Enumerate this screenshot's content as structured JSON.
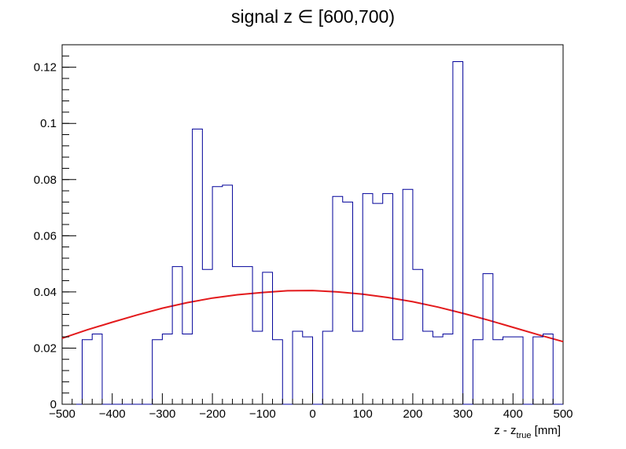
{
  "chart_data": {
    "type": "histogram",
    "title": "signal z ∈ [600,700)",
    "xlabel_main": "z - z",
    "xlabel_sub": "true",
    "xlabel_unit": " [mm]",
    "ylabel": "",
    "xlim": [
      -500,
      500
    ],
    "ylim": [
      0,
      0.128
    ],
    "grid": false,
    "legend": "none",
    "x_ticks": [
      -500,
      -400,
      -300,
      -200,
      -100,
      0,
      100,
      200,
      300,
      400,
      500
    ],
    "x_tick_labels": [
      "−500",
      "−400",
      "−300",
      "−200",
      "−100",
      "0",
      "100",
      "200",
      "300",
      "400",
      "500"
    ],
    "y_ticks": [
      0,
      0.02,
      0.04,
      0.06,
      0.08,
      0.1,
      0.12
    ],
    "y_tick_labels": [
      "0",
      "0.02",
      "0.04",
      "0.06",
      "0.08",
      "0.1",
      "0.12"
    ],
    "bin_edges": [
      -500,
      -480,
      -460,
      -440,
      -420,
      -400,
      -380,
      -360,
      -340,
      -320,
      -300,
      -280,
      -260,
      -240,
      -220,
      -200,
      -180,
      -160,
      -140,
      -120,
      -100,
      -80,
      -60,
      -40,
      -20,
      0,
      20,
      40,
      60,
      80,
      100,
      120,
      140,
      160,
      180,
      200,
      220,
      240,
      260,
      280,
      300,
      320,
      340,
      360,
      380,
      400,
      420,
      440,
      460,
      480,
      500
    ],
    "series": [
      {
        "kind": "histogram",
        "color": "#000099",
        "values": [
          0,
          0,
          0.023,
          0.025,
          0,
          0,
          0,
          0,
          0,
          0.023,
          0.025,
          0.049,
          0.025,
          0.098,
          0.048,
          0.0775,
          0.078,
          0.049,
          0.049,
          0.026,
          0.047,
          0.023,
          0,
          0.026,
          0.024,
          0,
          0.026,
          0.074,
          0.072,
          0.026,
          0.075,
          0.0715,
          0.075,
          0.023,
          0.0765,
          0.048,
          0.026,
          0.024,
          0.025,
          0.122,
          0,
          0.023,
          0.0465,
          0.023,
          0.024,
          0.024,
          0,
          0.024,
          0.025,
          0
        ]
      },
      {
        "kind": "fit",
        "color": "#e31a1c",
        "x": [
          -500,
          -450,
          -400,
          -350,
          -300,
          -250,
          -200,
          -150,
          -100,
          -50,
          0,
          50,
          100,
          150,
          200,
          250,
          300,
          350,
          400,
          450,
          500
        ],
        "y": [
          0.0235,
          0.0265,
          0.0292,
          0.0318,
          0.0342,
          0.0362,
          0.0378,
          0.039,
          0.0398,
          0.0404,
          0.0405,
          0.04,
          0.0392,
          0.038,
          0.0365,
          0.0346,
          0.0324,
          0.03,
          0.0274,
          0.0248,
          0.0223
        ]
      }
    ]
  }
}
